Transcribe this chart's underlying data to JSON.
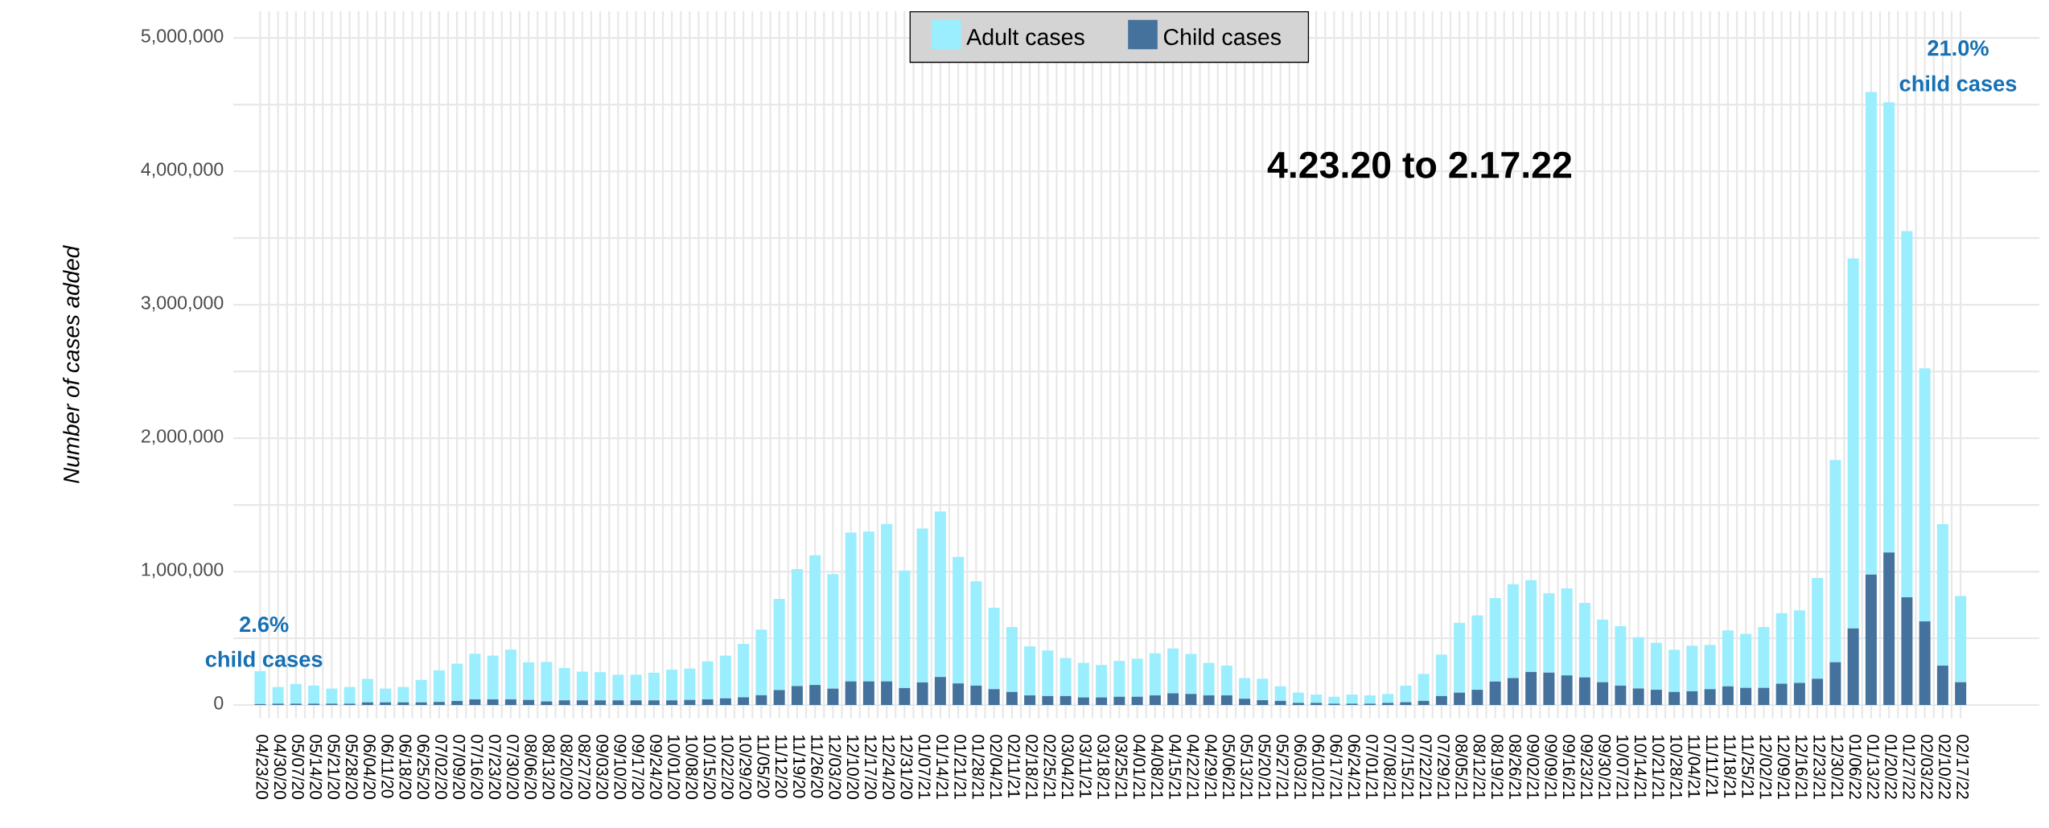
{
  "chart_data": {
    "type": "bar",
    "stacked": true,
    "title": "4.23.20 to 2.17.22",
    "ylabel": "Number of cases added",
    "annotations": [
      "2.6%",
      "child cases",
      "21.0%",
      "child cases"
    ],
    "categories": [
      "04/23/20",
      "04/30/20",
      "05/07/20",
      "05/14/20",
      "05/21/20",
      "05/28/20",
      "06/04/20",
      "06/11/20",
      "06/18/20",
      "06/25/20",
      "07/02/20",
      "07/09/20",
      "07/16/20",
      "07/23/20",
      "07/30/20",
      "08/06/20",
      "08/13/20",
      "08/20/20",
      "08/27/20",
      "09/03/20",
      "09/10/20",
      "09/17/20",
      "09/24/20",
      "10/01/20",
      "10/08/20",
      "10/15/20",
      "10/22/20",
      "10/29/20",
      "11/05/20",
      "11/12/20",
      "11/19/20",
      "11/26/20",
      "12/03/20",
      "12/10/20",
      "12/17/20",
      "12/24/20",
      "12/31/20",
      "01/07/21",
      "01/14/21",
      "01/21/21",
      "01/28/21",
      "02/04/21",
      "02/11/21",
      "02/18/21",
      "02/25/21",
      "03/04/21",
      "03/11/21",
      "03/18/21",
      "03/25/21",
      "04/01/21",
      "04/08/21",
      "04/15/21",
      "04/22/21",
      "04/29/21",
      "05/06/21",
      "05/13/21",
      "05/20/21",
      "05/27/21",
      "06/03/21",
      "06/10/21",
      "06/17/21",
      "06/24/21",
      "07/01/21",
      "07/08/21",
      "07/15/21",
      "07/22/21",
      "07/29/21",
      "08/05/21",
      "08/12/21",
      "08/19/21",
      "08/26/21",
      "09/02/21",
      "09/09/21",
      "09/16/21",
      "09/23/21",
      "09/30/21",
      "10/07/21",
      "10/14/21",
      "10/21/21",
      "10/28/21",
      "11/04/21",
      "11/11/21",
      "11/18/21",
      "11/25/21",
      "12/02/21",
      "12/09/21",
      "12/16/21",
      "12/23/21",
      "12/30/21",
      "01/06/22",
      "01/13/22",
      "01/20/22",
      "01/27/22",
      "02/03/22",
      "02/10/22",
      "02/17/22"
    ],
    "series": [
      {
        "name": "Child cases",
        "color": "#44729c",
        "values": [
          7000,
          10000,
          10000,
          10000,
          10000,
          10000,
          20000,
          20000,
          20000,
          20000,
          23000,
          30000,
          42000,
          42000,
          42000,
          38000,
          27000,
          35000,
          35000,
          35000,
          35000,
          35000,
          35000,
          35000,
          38000,
          42000,
          50000,
          58000,
          73000,
          112000,
          142000,
          150000,
          123000,
          177000,
          177000,
          177000,
          127000,
          169000,
          210000,
          162000,
          145000,
          119000,
          98000,
          72000,
          67000,
          67000,
          57000,
          57000,
          62000,
          62000,
          72000,
          88000,
          83000,
          72000,
          72000,
          47000,
          36000,
          31000,
          16000,
          16000,
          10000,
          10000,
          10000,
          16000,
          21000,
          31000,
          67000,
          93000,
          114000,
          176000,
          202000,
          248000,
          243000,
          222000,
          207000,
          171000,
          145000,
          124000,
          114000,
          98000,
          103000,
          119000,
          140000,
          129000,
          129000,
          160000,
          166000,
          197000,
          321000,
          574000,
          978000,
          1143000,
          807000,
          626000,
          295000,
          171000
        ]
      },
      {
        "name": "Adult cases",
        "color": "#9beefd",
        "values": [
          247000,
          125000,
          148000,
          136000,
          113000,
          125000,
          176000,
          103000,
          115000,
          168000,
          237000,
          280000,
          343000,
          328000,
          373000,
          282000,
          296000,
          242000,
          215000,
          211000,
          192000,
          192000,
          207000,
          230000,
          235000,
          285000,
          320000,
          400000,
          492000,
          684000,
          877000,
          973000,
          857000,
          1115000,
          1123000,
          1181000,
          881000,
          1154000,
          1240000,
          948000,
          781000,
          610000,
          487000,
          368000,
          342000,
          285000,
          259000,
          243000,
          269000,
          285000,
          316000,
          336000,
          300000,
          244000,
          223000,
          155000,
          161000,
          109000,
          77000,
          62000,
          52000,
          68000,
          62000,
          67000,
          124000,
          202000,
          311000,
          523000,
          558000,
          626000,
          703000,
          688000,
          595000,
          652000,
          559000,
          470000,
          445000,
          383000,
          352000,
          316000,
          342000,
          331000,
          419000,
          404000,
          456000,
          528000,
          543000,
          755000,
          1515000,
          2773000,
          3617000,
          3375000,
          2745000,
          1897000,
          1060000,
          646000
        ]
      }
    ],
    "ylim": [
      -100000,
      5200000
    ],
    "yticks": [
      0,
      {
        "value": 1000000,
        "label": "1,000,000"
      },
      {
        "value": 2000000,
        "label": "2,000,000"
      },
      {
        "value": 3000000,
        "label": "3,000,000"
      },
      {
        "value": 4000000,
        "label": "4,000,000"
      },
      {
        "value": 5000000,
        "label": "5,000,000"
      }
    ],
    "grid": true,
    "legend": "top"
  }
}
